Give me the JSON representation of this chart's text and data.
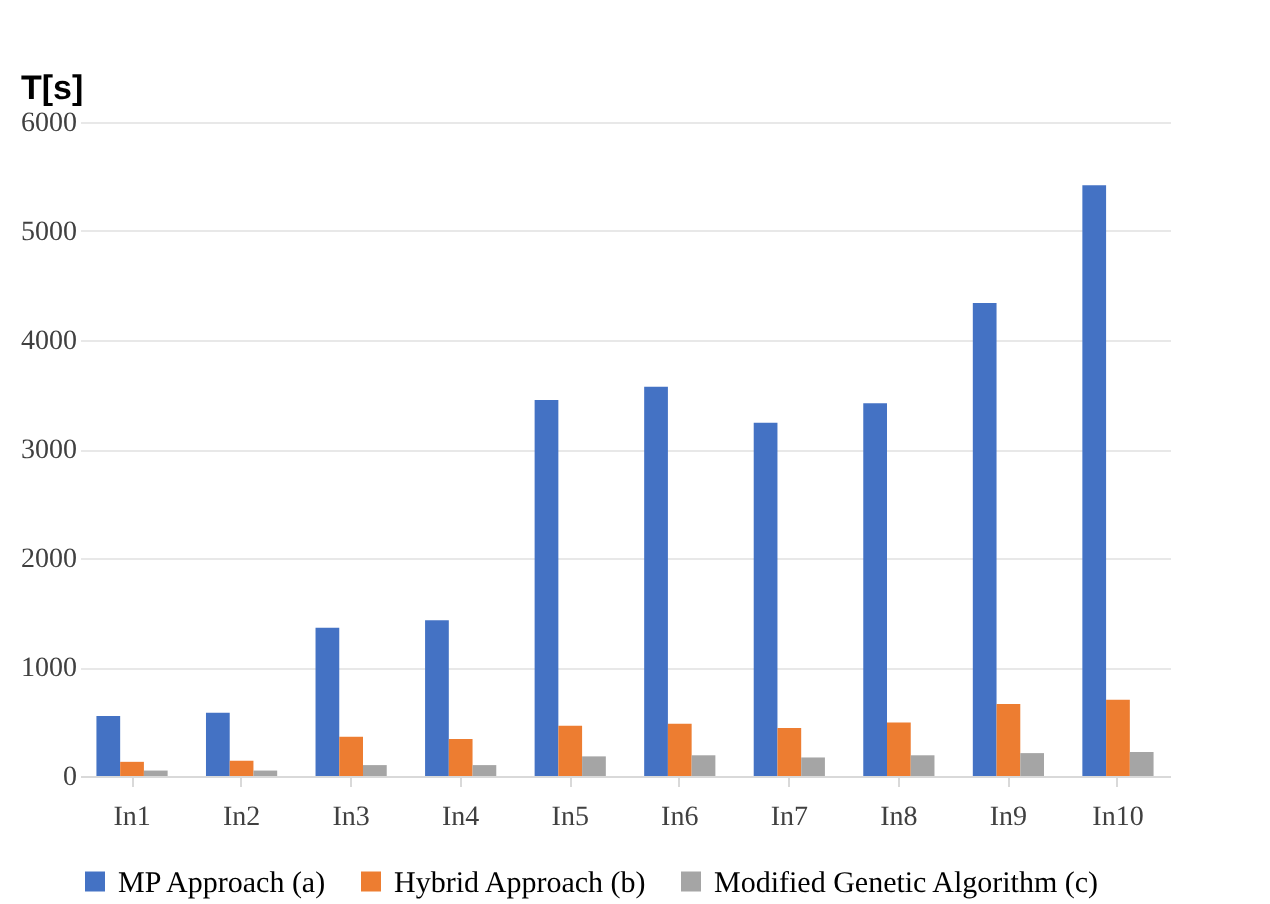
{
  "chart_data": {
    "type": "bar",
    "ylabel": "T[s]",
    "categories": [
      "In1",
      "In2",
      "In3",
      "In4",
      "In5",
      "In6",
      "In7",
      "In8",
      "In9",
      "In10"
    ],
    "series": [
      {
        "name": "MP  Approach (a)",
        "color": "#4472c4",
        "values": [
          550,
          580,
          1360,
          1430,
          3450,
          3570,
          3240,
          3420,
          4340,
          5420
        ]
      },
      {
        "name": "Hybrid  Approach (b)",
        "color": "#ed7d31",
        "values": [
          130,
          140,
          360,
          340,
          460,
          480,
          440,
          490,
          660,
          700
        ]
      },
      {
        "name": "Modified Genetic Algorithm (c)",
        "color": "#a5a5a5",
        "values": [
          50,
          50,
          100,
          100,
          180,
          190,
          170,
          190,
          210,
          220
        ]
      }
    ],
    "ylim": [
      0,
      6000
    ],
    "yticks": [
      0,
      1000,
      2000,
      3000,
      4000,
      5000,
      6000
    ],
    "grid": "y",
    "legend": "bottom"
  }
}
